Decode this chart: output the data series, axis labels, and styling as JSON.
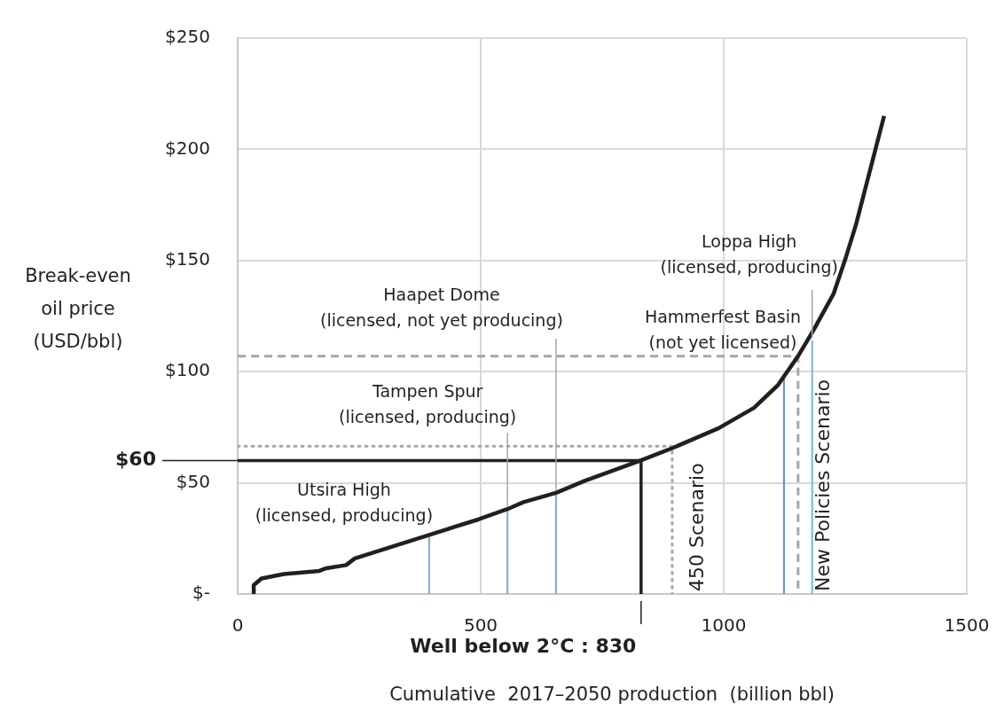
{
  "chart_data": {
    "type": "line",
    "xlabel": "Cumulative  2017–2050 production  (billion bbl)",
    "ylabel": "Break-even\noil price\n(USD/bbl)",
    "xlim": [
      0,
      1500
    ],
    "xticks": [
      0,
      500,
      1000,
      1500
    ],
    "ylim": [
      0,
      250
    ],
    "yticks": [
      {
        "value": 0,
        "label": "$-"
      },
      {
        "value": 50,
        "label": "$50"
      },
      {
        "value": 100,
        "label": "$100"
      },
      {
        "value": 150,
        "label": "$150"
      },
      {
        "value": 200,
        "label": "$200"
      },
      {
        "value": 250,
        "label": "$250"
      }
    ],
    "grid": true,
    "legend": false,
    "marker": "none",
    "series": [
      {
        "color": "#231f20",
        "line_style": "solid",
        "x": [
          33,
          33,
          49,
          95,
          168,
          182,
          223,
          241,
          277,
          394,
          496,
          555,
          588,
          655,
          715,
          828,
          894,
          989,
          1062,
          1111,
          1153,
          1184,
          1226,
          1250,
          1272,
          1330
        ],
        "values": [
          0,
          4,
          7,
          9,
          10.4,
          11.6,
          13,
          16,
          18.5,
          26.6,
          33.6,
          38.2,
          41.3,
          45.5,
          51,
          60,
          65.6,
          74.5,
          83.7,
          93.8,
          107,
          118.4,
          135,
          150.5,
          166,
          215
        ]
      },
      {
        "color": "#231f20",
        "line_style": "solid",
        "x": [
          0,
          830,
          830
        ],
        "values": [
          60,
          60,
          0
        ]
      },
      {
        "name": "450 Scenario",
        "color": "#a6a6a6",
        "line_style": "dotted",
        "x": [
          0,
          894,
          894
        ],
        "values": [
          66.5,
          66.5,
          0
        ]
      },
      {
        "name": "New Policies Scenario",
        "color": "#a6a6a6",
        "line_style": "dashed",
        "x": [
          0,
          1153,
          1153
        ],
        "values": [
          107,
          107,
          0
        ]
      },
      {
        "color": "#7fb3e0",
        "line_style": "solid",
        "x": [
          394,
          394
        ],
        "values": [
          0,
          26.6
        ]
      },
      {
        "color": "#7fb3e0",
        "line_style": "solid",
        "x": [
          555,
          555
        ],
        "values": [
          0,
          38.2
        ]
      },
      {
        "color": "#8fa9c4",
        "line_style": "solid",
        "x": [
          655,
          655
        ],
        "values": [
          0,
          45.5
        ]
      },
      {
        "color": "#6c92d2",
        "line_style": "solid",
        "x": [
          1124,
          1124
        ],
        "values": [
          0,
          99
        ]
      },
      {
        "color": "#84b9e8",
        "line_style": "solid",
        "x": [
          1182,
          1182
        ],
        "values": [
          0,
          114
        ]
      }
    ],
    "annotations": [
      {
        "text": "Utsira High\n(licensed, producing)",
        "x": 394,
        "y": 26.6
      },
      {
        "text": "Tampen Spur\n(licensed, producing)",
        "x": 555,
        "y": 38.2
      },
      {
        "text": "Haapet Dome\n(licensed, not yet producing)",
        "x": 655,
        "y": 45.5
      },
      {
        "text": "Hammerfest Basin\n(not yet licensed)",
        "x": 1124,
        "y": 99
      },
      {
        "text": "Loppa High\n(licensed, producing)",
        "x": 1182,
        "y": 114
      },
      "$60",
      {
        "text": "Well below 2°C : 830",
        "x": 830,
        "y": 0
      }
    ]
  }
}
